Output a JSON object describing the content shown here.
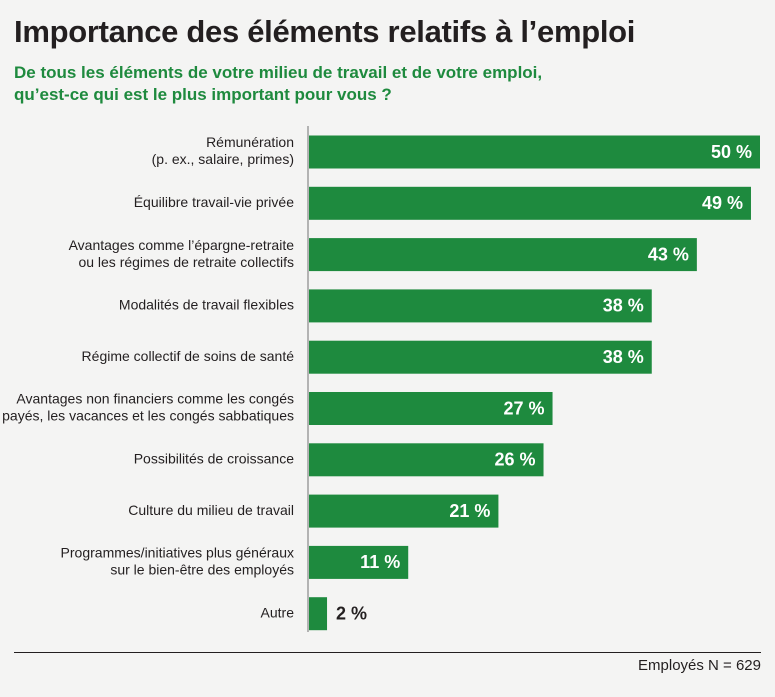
{
  "title": "Importance des éléments relatifs à l’emploi",
  "subtitle_lines": [
    "De tous les éléments de votre milieu de travail et de votre emploi,",
    "qu’est-ce qui est le plus important pour vous ?"
  ],
  "footer": "Employés N = 629",
  "colors": {
    "bar": "#1e8a3e",
    "axis": "#b3b3b3",
    "text": "#231f20",
    "label_inside": "#ffffff"
  },
  "chart_data": {
    "type": "bar",
    "orientation": "horizontal",
    "categories": [
      [
        "Rémunération",
        "(p. ex., salaire, primes)"
      ],
      [
        "Équilibre travail-vie privée"
      ],
      [
        "Avantages comme l’épargne-retraite",
        "ou les régimes de retraite collectifs"
      ],
      [
        "Modalités de travail flexibles"
      ],
      [
        "Régime collectif de soins de santé"
      ],
      [
        "Avantages non financiers comme les congés",
        "payés, les vacances et les congés sabbatiques"
      ],
      [
        "Possibilités de croissance"
      ],
      [
        "Culture du milieu de travail"
      ],
      [
        "Programmes/initiatives plus généraux",
        "sur le bien-être des employés"
      ],
      [
        "Autre"
      ]
    ],
    "values": [
      50,
      49,
      43,
      38,
      38,
      27,
      26,
      21,
      11,
      2
    ],
    "value_labels": [
      "50 %",
      "49 %",
      "43 %",
      "38 %",
      "38 %",
      "27 %",
      "26 %",
      "21 %",
      "11 %",
      "2 %"
    ],
    "unit": "%",
    "grid": false,
    "legend": "none"
  }
}
